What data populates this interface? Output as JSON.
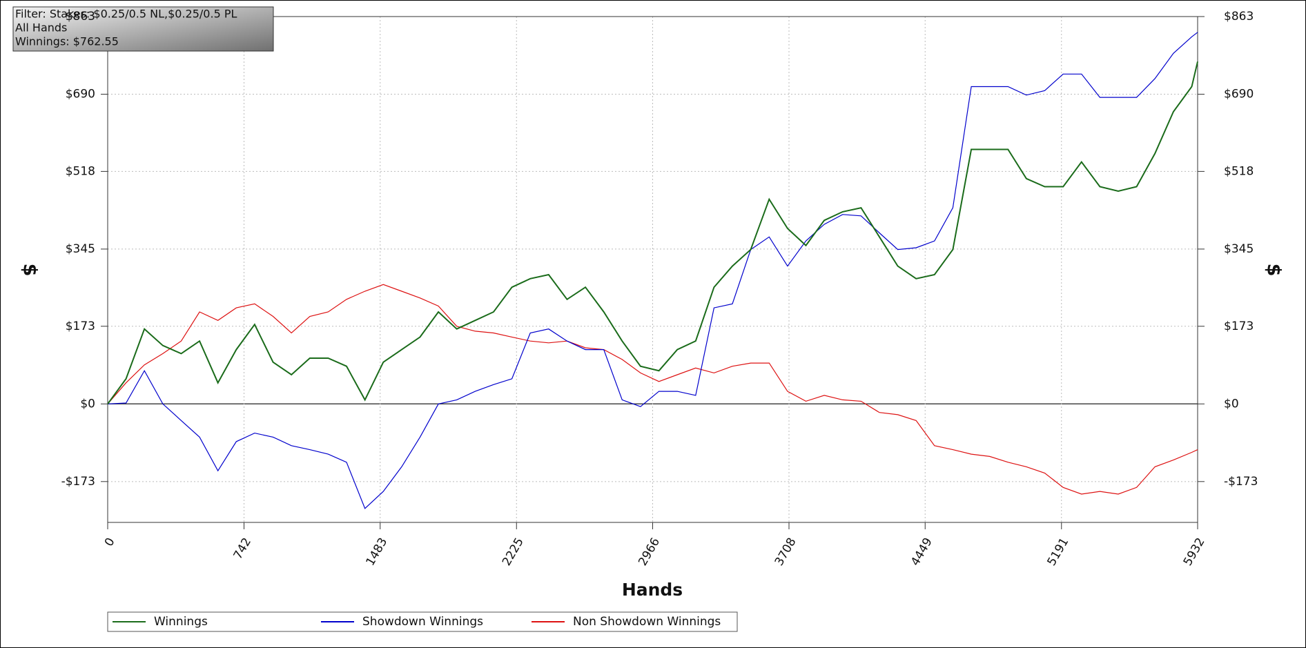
{
  "chart_data": {
    "type": "line",
    "annotations": [
      "Filter: Stakes: $0.25/0.5 NL,$0.25/0.5 PL",
      "All Hands",
      "Winnings: $762.55"
    ],
    "xlabel": "Hands",
    "ylabel": "$",
    "xlim": [
      0,
      5932
    ],
    "xticks": [
      0,
      742,
      1483,
      2225,
      2966,
      3708,
      4449,
      5191,
      5932
    ],
    "ylim": [
      -264,
      863
    ],
    "yticks": [
      {
        "value": -173,
        "label": "-$173"
      },
      {
        "value": 0,
        "label": "$0"
      },
      {
        "value": 173,
        "label": "$173"
      },
      {
        "value": 345,
        "label": "$345"
      },
      {
        "value": 518,
        "label": "$518"
      },
      {
        "value": 690,
        "label": "$690"
      },
      {
        "value": 863,
        "label": "$863"
      }
    ],
    "grid": true,
    "x": [
      0,
      100,
      200,
      300,
      400,
      500,
      600,
      700,
      800,
      900,
      1000,
      1100,
      1200,
      1300,
      1400,
      1500,
      1600,
      1700,
      1800,
      1900,
      2000,
      2100,
      2200,
      2300,
      2400,
      2500,
      2600,
      2700,
      2800,
      2900,
      3000,
      3100,
      3200,
      3300,
      3400,
      3500,
      3600,
      3700,
      3800,
      3900,
      4000,
      4100,
      4200,
      4300,
      4400,
      4500,
      4600,
      4700,
      4800,
      4900,
      5000,
      5100,
      5200,
      5300,
      5400,
      5500,
      5600,
      5700,
      5800,
      5900,
      5932
    ],
    "series": [
      {
        "name": "Winnings",
        "color": "#1a6b1a",
        "values": [
          0,
          56,
          167,
          130,
          112,
          140,
          47,
          121,
          177,
          93,
          65,
          102,
          102,
          84,
          9,
          93,
          121,
          149,
          205,
          167,
          186,
          205,
          260,
          279,
          288,
          233,
          260,
          205,
          140,
          84,
          74,
          121,
          140,
          260,
          307,
          344,
          456,
          391,
          353,
          409,
          428,
          437,
          372,
          307,
          279,
          288,
          344,
          567,
          567,
          567,
          502,
          484,
          484,
          539,
          484,
          474,
          484,
          558,
          651,
          707,
          762.55
        ]
      },
      {
        "name": "Showdown Winnings",
        "color": "#0000cc",
        "values": [
          0,
          2,
          74,
          0,
          -37,
          -74,
          -149,
          -84,
          -65,
          -74,
          -93,
          -102,
          -112,
          -130,
          -233,
          -195,
          -140,
          -74,
          0,
          9,
          28,
          43,
          56,
          158,
          167,
          140,
          121,
          121,
          9,
          -6,
          28,
          28,
          19,
          214,
          223,
          344,
          372,
          307,
          363,
          400,
          422,
          419,
          381,
          344,
          348,
          363,
          437,
          707,
          707,
          707,
          688,
          698,
          735,
          735,
          683,
          683,
          683,
          725,
          781,
          818,
          828
        ]
      },
      {
        "name": "Non Showdown Winnings",
        "color": "#dd1111",
        "values": [
          0,
          47,
          87,
          112,
          140,
          205,
          186,
          214,
          223,
          195,
          158,
          195,
          205,
          233,
          251,
          266,
          251,
          236,
          218,
          173,
          162,
          158,
          149,
          140,
          136,
          140,
          125,
          121,
          99,
          69,
          50,
          65,
          80,
          69,
          84,
          91,
          91,
          28,
          6,
          19,
          9,
          6,
          -19,
          -24,
          -37,
          -93,
          -102,
          -112,
          -117,
          -130,
          -140,
          -154,
          -186,
          -201,
          -195,
          -201,
          -186,
          -140,
          -125,
          -108,
          -102
        ]
      }
    ]
  }
}
